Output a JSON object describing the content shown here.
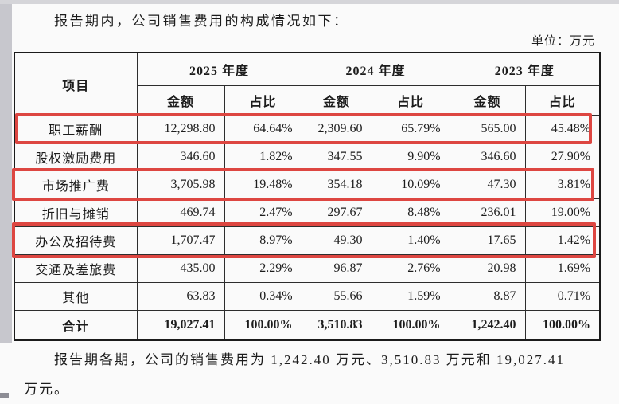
{
  "intro": "报告期内，公司销售费用的构成情况如下：",
  "unit_label": "单位：万元",
  "table": {
    "item_header": "项目",
    "year_headers": [
      "2025 年度",
      "2024 年度",
      "2023 年度"
    ],
    "sub_headers": {
      "amount": "金额",
      "ratio": "占比"
    },
    "highlight_color": "#dd4641",
    "rows": [
      {
        "item": "职工薪酬",
        "cells": [
          "12,298.80",
          "64.64%",
          "2,309.60",
          "65.79%",
          "565.00",
          "45.48%"
        ],
        "highlighted": true,
        "total": false
      },
      {
        "item": "股权激励费用",
        "cells": [
          "346.60",
          "1.82%",
          "347.55",
          "9.90%",
          "346.60",
          "27.90%"
        ],
        "highlighted": false,
        "total": false
      },
      {
        "item": "市场推广费",
        "cells": [
          "3,705.98",
          "19.48%",
          "354.18",
          "10.09%",
          "47.30",
          "3.81%"
        ],
        "highlighted": true,
        "total": false
      },
      {
        "item": "折旧与摊销",
        "cells": [
          "469.74",
          "2.47%",
          "297.67",
          "8.48%",
          "236.01",
          "19.00%"
        ],
        "highlighted": false,
        "total": false
      },
      {
        "item": "办公及招待费",
        "cells": [
          "1,707.47",
          "8.97%",
          "49.30",
          "1.40%",
          "17.65",
          "1.42%"
        ],
        "highlighted": true,
        "total": false
      },
      {
        "item": "交通及差旅费",
        "cells": [
          "435.00",
          "2.29%",
          "96.87",
          "2.76%",
          "20.98",
          "1.69%"
        ],
        "highlighted": false,
        "total": false
      },
      {
        "item": "其他",
        "cells": [
          "63.83",
          "0.34%",
          "55.66",
          "1.59%",
          "8.87",
          "0.71%"
        ],
        "highlighted": false,
        "total": false
      },
      {
        "item": "合计",
        "cells": [
          "19,027.41",
          "100.00%",
          "3,510.83",
          "100.00%",
          "1,242.40",
          "100.00%"
        ],
        "highlighted": false,
        "total": true
      }
    ]
  },
  "footer": {
    "line1": "报告期各期，公司的销售费用为 1,242.40 万元、3,510.83 万元和 19,027.41",
    "line2": "万元。"
  }
}
